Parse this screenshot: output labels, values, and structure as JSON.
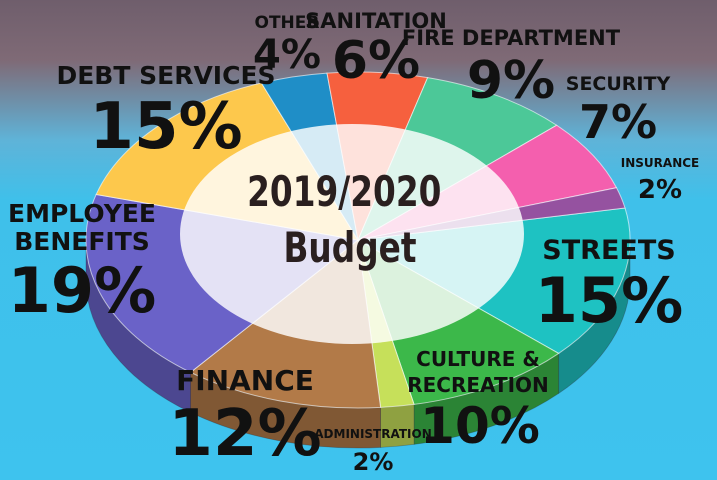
{
  "chart_data": {
    "type": "pie",
    "title": "2019/2020 Budget",
    "title_lines": [
      "2019/2020",
      "Budget"
    ],
    "slices": [
      {
        "label": "STREETS",
        "label_lines": [
          "STREETS"
        ],
        "percent": 15,
        "value_label": "15%",
        "color": "#1ec2c2"
      },
      {
        "label": "CULTURE & RECREATION",
        "label_lines": [
          "CULTURE &",
          "RECREATION"
        ],
        "percent": 10,
        "value_label": "10%",
        "color": "#3cb84a"
      },
      {
        "label": "ADMINISTRATION",
        "label_lines": [
          "ADMINISTRATION"
        ],
        "percent": 2,
        "value_label": "2%",
        "color": "#c6e05a"
      },
      {
        "label": "FINANCE",
        "label_lines": [
          "FINANCE"
        ],
        "percent": 12,
        "value_label": "12%",
        "color": "#b27a48"
      },
      {
        "label": "EMPLOYEE BENEFITS",
        "label_lines": [
          "EMPLOYEE",
          "BENEFITS"
        ],
        "percent": 19,
        "value_label": "19%",
        "color": "#6a62c8"
      },
      {
        "label": "DEBT SERVICES",
        "label_lines": [
          "DEBT SERVICES"
        ],
        "percent": 15,
        "value_label": "15%",
        "color": "#fdc84c"
      },
      {
        "label": "OTHER",
        "label_lines": [
          "OTHER"
        ],
        "percent": 4,
        "value_label": "4%",
        "color": "#1f8ec7"
      },
      {
        "label": "SANITATION",
        "label_lines": [
          "SANITATION"
        ],
        "percent": 6,
        "value_label": "6%",
        "color": "#f6603e"
      },
      {
        "label": "FIRE DEPARTMENT",
        "label_lines": [
          "FIRE DEPARTMENT"
        ],
        "percent": 9,
        "value_label": "9%",
        "color": "#4cc898"
      },
      {
        "label": "SECURITY",
        "label_lines": [
          "SECURITY"
        ],
        "percent": 7,
        "value_label": "7%",
        "color": "#f45fae"
      },
      {
        "label": "INSURANCE",
        "label_lines": [
          "INSURANCE"
        ],
        "percent": 2,
        "value_label": "2%",
        "color": "#9552a0"
      }
    ]
  }
}
